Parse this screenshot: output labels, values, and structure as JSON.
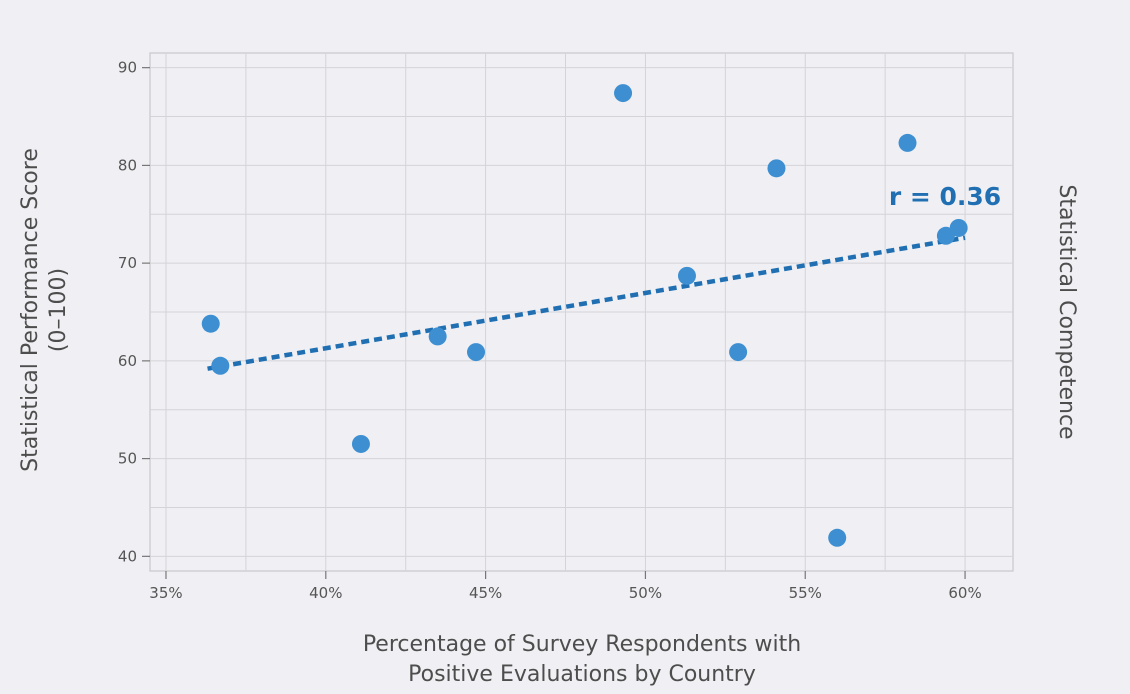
{
  "chart_data": {
    "type": "scatter",
    "title": "",
    "xlabel_lines": [
      "Percentage of Survey Respondents with",
      "Positive Evaluations by Country"
    ],
    "ylabel_lines": [
      "Statistical Performance Score",
      "(0–100)"
    ],
    "right_label": "Statistical Competence",
    "xlim": [
      34.5,
      61.5
    ],
    "ylim": [
      38.5,
      91.5
    ],
    "x_ticks": [
      35,
      40,
      45,
      50,
      55,
      60
    ],
    "x_tick_labels": [
      "35%",
      "40%",
      "45%",
      "50%",
      "55%",
      "60%"
    ],
    "y_ticks": [
      40,
      50,
      60,
      70,
      80,
      90
    ],
    "y_tick_labels": [
      "40",
      "50",
      "60",
      "70",
      "80",
      "90"
    ],
    "x_grid_minor": [
      37.5,
      42.5,
      47.5,
      52.5,
      57.5
    ],
    "y_grid_minor": [
      45,
      55,
      65,
      75,
      85
    ],
    "grid": true,
    "points": [
      {
        "x": 36.4,
        "y": 63.8
      },
      {
        "x": 36.7,
        "y": 59.5
      },
      {
        "x": 41.1,
        "y": 51.5
      },
      {
        "x": 43.5,
        "y": 62.5
      },
      {
        "x": 44.7,
        "y": 60.9
      },
      {
        "x": 49.3,
        "y": 87.4
      },
      {
        "x": 51.3,
        "y": 68.7
      },
      {
        "x": 52.9,
        "y": 60.9
      },
      {
        "x": 54.1,
        "y": 79.7
      },
      {
        "x": 56.0,
        "y": 41.9
      },
      {
        "x": 58.2,
        "y": 82.3
      },
      {
        "x": 59.4,
        "y": 72.8
      },
      {
        "x": 59.8,
        "y": 73.6
      }
    ],
    "trendline": {
      "x1": 36.3,
      "y1": 59.2,
      "x2": 60.0,
      "y2": 72.6
    },
    "annotation": "r = 0.36",
    "colors": {
      "point": "#3d8fd1",
      "trend": "#1f6fb2",
      "grid": "#d4d4d8",
      "frame": "#c8c8cc"
    }
  }
}
